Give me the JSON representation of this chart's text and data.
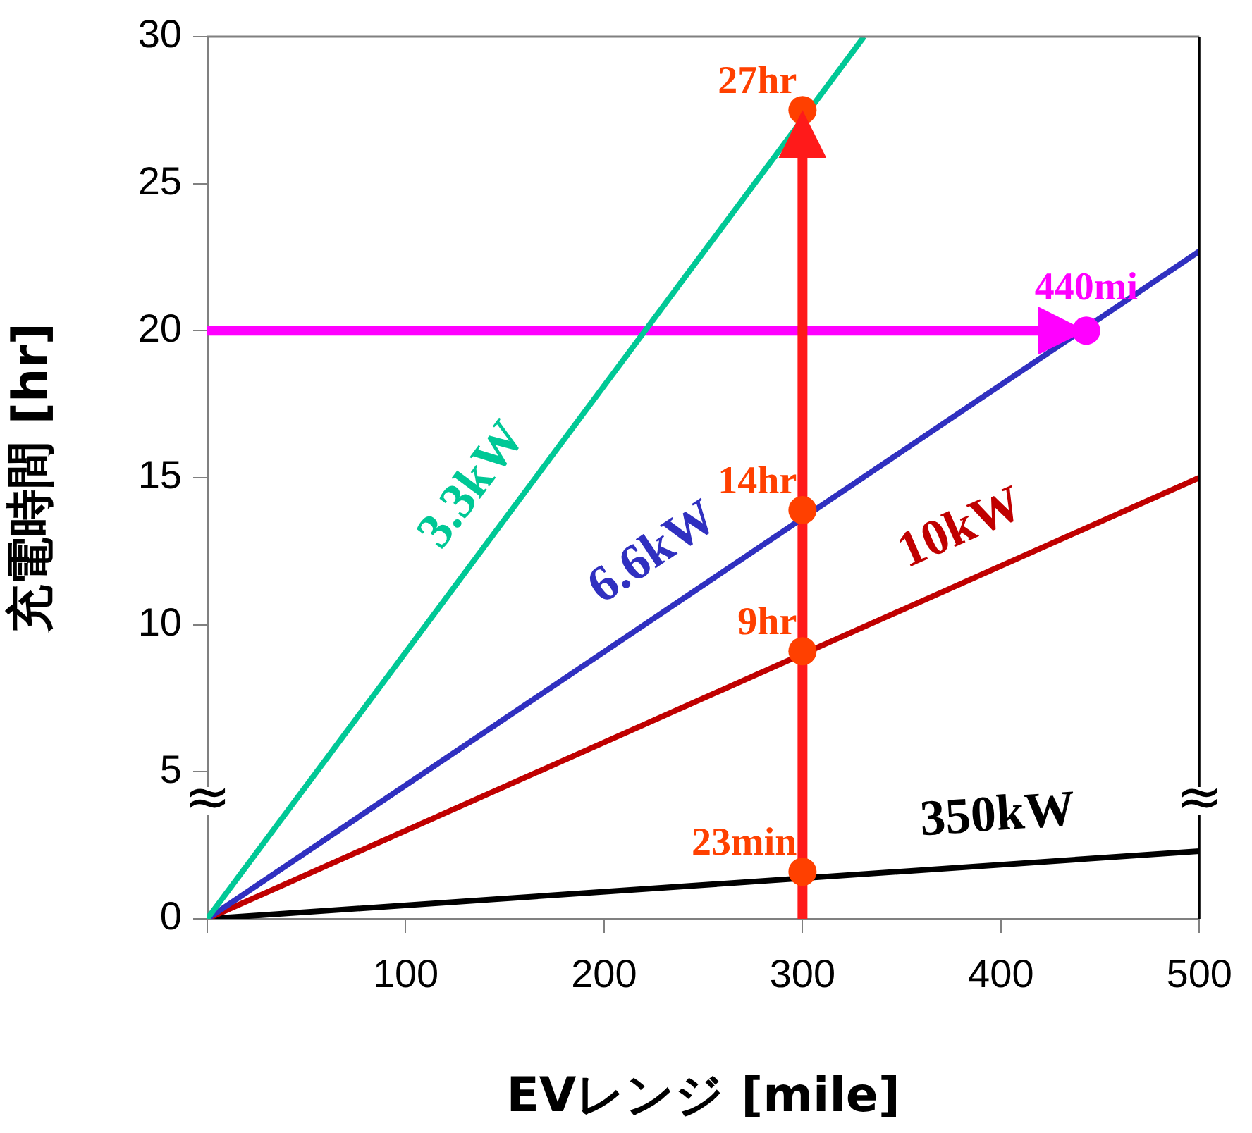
{
  "chart_data": {
    "type": "line",
    "xlabel": "EVレンジ [mile]",
    "ylabel": "充電時間 [hr]",
    "xlim": [
      0,
      500
    ],
    "xticks": [
      {
        "value": 0,
        "label": null
      },
      100,
      200,
      300,
      400,
      500
    ],
    "ylim": [
      0,
      30
    ],
    "yticks": [
      0,
      5,
      10,
      15,
      20,
      25,
      30
    ],
    "grid": false,
    "legend": false,
    "line_style": "solid",
    "series": [
      {
        "name": "3.3kW",
        "type": "line",
        "color": "#00c896",
        "x": [
          0,
          331
        ],
        "values": [
          0,
          30
        ],
        "marker": "none"
      },
      {
        "name": "6.6kW",
        "type": "line",
        "color": "#3030c0",
        "x": [
          0,
          500
        ],
        "values": [
          0,
          22.7
        ],
        "marker": "none"
      },
      {
        "name": "10kW",
        "type": "line",
        "color": "#c00000",
        "x": [
          0,
          500
        ],
        "values": [
          0,
          15
        ],
        "marker": "none"
      },
      {
        "name": "350kW",
        "type": "line",
        "color": "#000000",
        "x": [
          0,
          500
        ],
        "values": [
          0,
          2.3
        ],
        "marker": "none"
      },
      {
        "type": "line",
        "color": "#ff1a1a",
        "x": [
          300,
          300
        ],
        "values": [
          0,
          27.5
        ],
        "marker": "none"
      },
      {
        "type": "line",
        "color": "#ff00ff",
        "x": [
          0,
          443
        ],
        "values": [
          20,
          20
        ],
        "marker": "none"
      },
      {
        "type": "scatter",
        "color": "#ff4000",
        "x": [
          300,
          300,
          300,
          300
        ],
        "values": [
          27.5,
          13.9,
          9.1,
          1.6
        ],
        "marker": "circle"
      },
      {
        "type": "scatter",
        "color": "#ff00ff",
        "x": [
          443
        ],
        "values": [
          20
        ],
        "marker": "circle"
      }
    ],
    "annotations": [
      {
        "text": "27hr",
        "x": 300,
        "y": 27.5
      },
      {
        "text": "14hr",
        "x": 300,
        "y": 13.9
      },
      {
        "text": "9hr",
        "x": 300,
        "y": 9.1
      },
      {
        "text": "23min",
        "x": 300,
        "y": 1.6
      },
      {
        "text": "440mi",
        "x": 443,
        "y": 20
      },
      {
        "text": "≈",
        "x": 0,
        "y": 4
      },
      {
        "text": "≈",
        "x": 500,
        "y": 4
      }
    ]
  }
}
